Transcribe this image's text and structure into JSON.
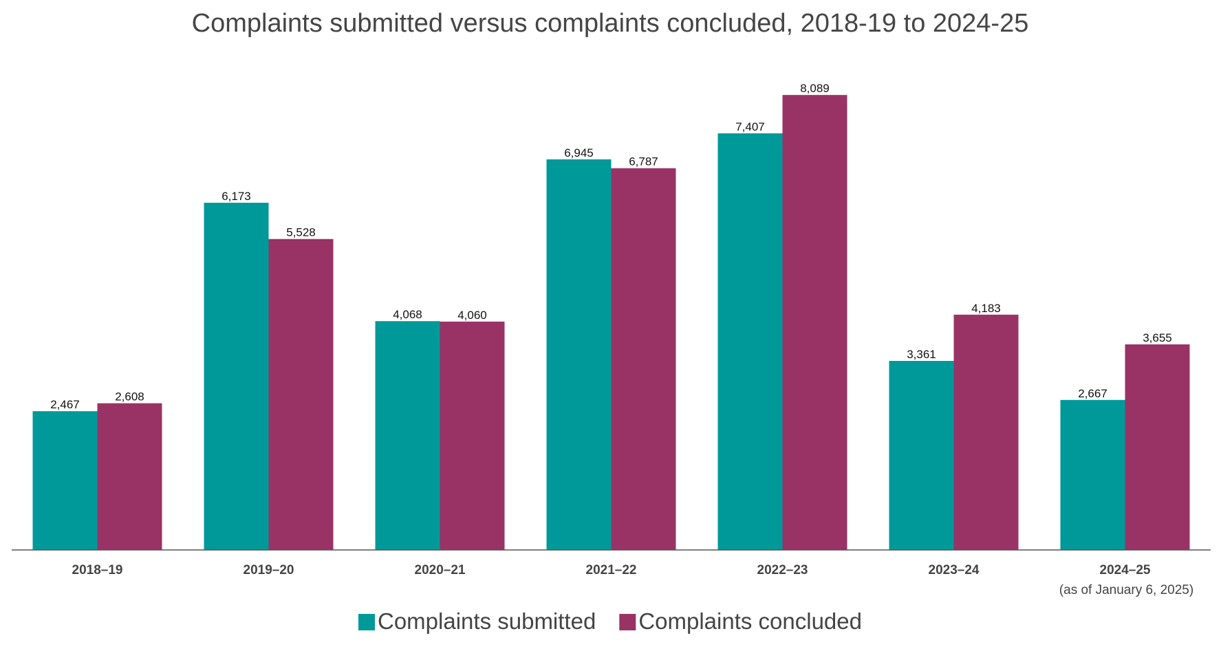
{
  "chart_data": {
    "type": "bar",
    "title": "Complaints submitted versus complaints concluded, 2018-19 to 2024-25",
    "xlabel": "",
    "ylabel": "",
    "categories": [
      "2018–19",
      "2019–20",
      "2020–21",
      "2021–22",
      "2022–23",
      "2023–24",
      "2024–25"
    ],
    "category_notes": [
      "",
      "",
      "",
      "",
      "",
      "",
      "(as of January 6, 2025)"
    ],
    "series": [
      {
        "name": "Complaints submitted",
        "color": "#009999",
        "values": [
          2467,
          6173,
          4068,
          6945,
          7407,
          3361,
          2667
        ],
        "labels": [
          "2,467",
          "6,173",
          "4,068",
          "6,945",
          "7,407",
          "3,361",
          "2,667"
        ]
      },
      {
        "name": "Complaints concluded",
        "color": "#993366",
        "values": [
          2608,
          5528,
          4060,
          6787,
          8089,
          4183,
          3655
        ],
        "labels": [
          "2,608",
          "5,528",
          "4,060",
          "6,787",
          "8,089",
          "4,183",
          "3,655"
        ]
      }
    ],
    "ylim": [
      0,
      8800
    ],
    "grid": false,
    "legend_position": "bottom"
  }
}
